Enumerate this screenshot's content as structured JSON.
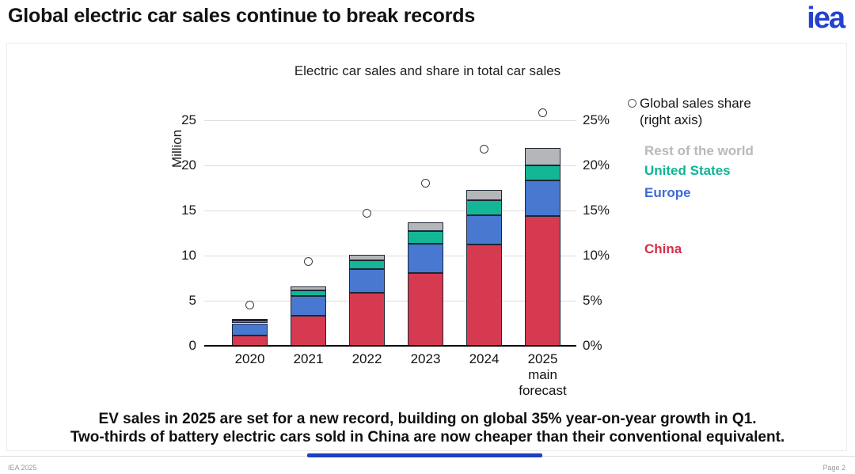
{
  "header": {
    "title": "Global electric car sales continue to break records",
    "logo_text": "iea"
  },
  "chart": {
    "title": "Electric car sales and share in total car sales"
  },
  "chart_data": {
    "type": "bar",
    "stacked": true,
    "title": "Electric car sales and share in total car sales",
    "categories": [
      "2020",
      "2021",
      "2022",
      "2023",
      "2024",
      "2025"
    ],
    "last_category_note_lines": [
      "main",
      "forecast"
    ],
    "series": [
      {
        "name": "China",
        "color": "#d63a50",
        "values": [
          1.1,
          3.3,
          5.9,
          8.1,
          11.2,
          14.4
        ]
      },
      {
        "name": "Europe",
        "color": "#4878d0",
        "values": [
          1.4,
          2.2,
          2.6,
          3.2,
          3.3,
          3.9
        ]
      },
      {
        "name": "United States",
        "color": "#14b795",
        "values": [
          0.35,
          0.6,
          1.0,
          1.4,
          1.6,
          1.7
        ]
      },
      {
        "name": "Rest of the world",
        "color": "#b4b6b8",
        "values": [
          0.15,
          0.5,
          0.6,
          1.0,
          1.2,
          1.9
        ]
      }
    ],
    "totals": [
      3.0,
      6.6,
      10.1,
      13.7,
      17.3,
      21.9
    ],
    "share_series": {
      "name": "Global sales share (right axis)",
      "marker": "open-circle",
      "values_percent": [
        4.5,
        9.3,
        14.7,
        18.0,
        21.8,
        25.8
      ]
    },
    "left_axis": {
      "label": "Million",
      "ticks": [
        0,
        5,
        10,
        15,
        20,
        25
      ],
      "max": 25
    },
    "right_axis": {
      "ticks": [
        "0%",
        "5%",
        "10%",
        "15%",
        "20%",
        "25%"
      ],
      "max_percent": 25
    },
    "grid": true,
    "legend_position": "right"
  },
  "legend": {
    "share_item": {
      "line1": "Global sales share",
      "line2": "(right axis)"
    },
    "items": [
      {
        "label": "Rest of the world",
        "color": "#b9b9b9"
      },
      {
        "label": "United States",
        "color": "#0fb495"
      },
      {
        "label": "Europe",
        "color": "#3f6bd6"
      },
      {
        "label": "China",
        "color": "#d22f48"
      }
    ]
  },
  "caption": {
    "line1": "EV sales in 2025 are set for a new record, building on global 35% year-on-year growth in Q1.",
    "line2": "Two-thirds of battery electric cars sold in China are now cheaper than their conventional equivalent."
  },
  "footer": {
    "left": "IEA 2025",
    "right": "Page 2"
  }
}
